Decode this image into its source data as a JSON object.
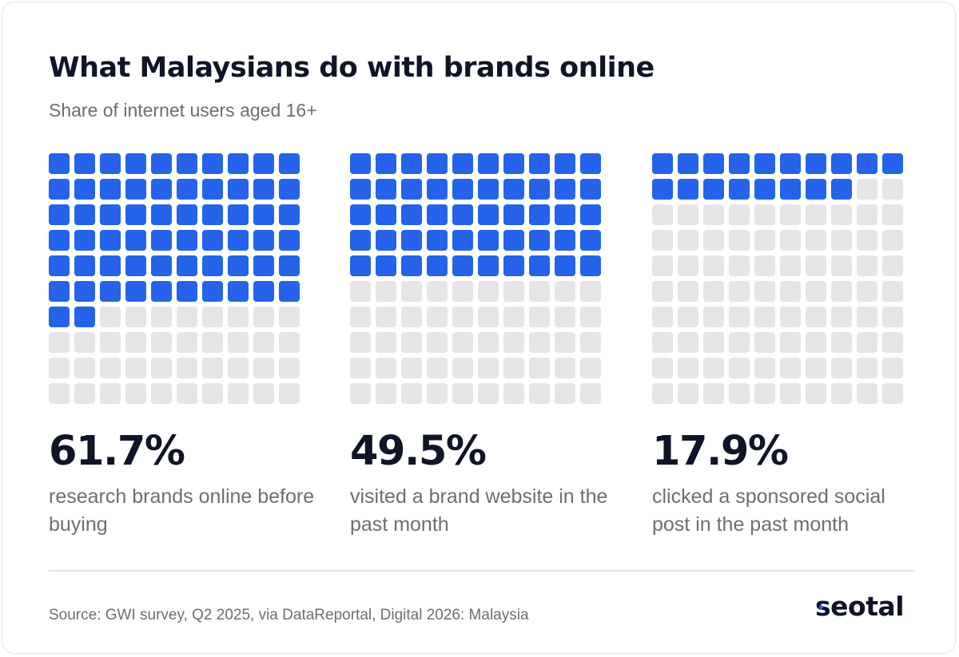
{
  "title": "What Malaysians do with brands online",
  "subtitle": "Share of internet users aged 16+",
  "chart_data": {
    "type": "waffle",
    "grid": [
      10,
      10
    ],
    "colors": {
      "filled": "#2563eb",
      "empty": "#e6e6e8"
    },
    "panels": [
      {
        "value": 61.7,
        "label": "61.7%",
        "description": "research brands online before buying"
      },
      {
        "value": 49.5,
        "label": "49.5%",
        "description": "visited a brand website in the past month"
      },
      {
        "value": 17.9,
        "label": "17.9%",
        "description": "clicked a sponsored social post in the past month"
      }
    ]
  },
  "source": "Source: GWI survey, Q2 2025, via DataReportal, Digital 2026: Malaysia",
  "logo": "seotal"
}
